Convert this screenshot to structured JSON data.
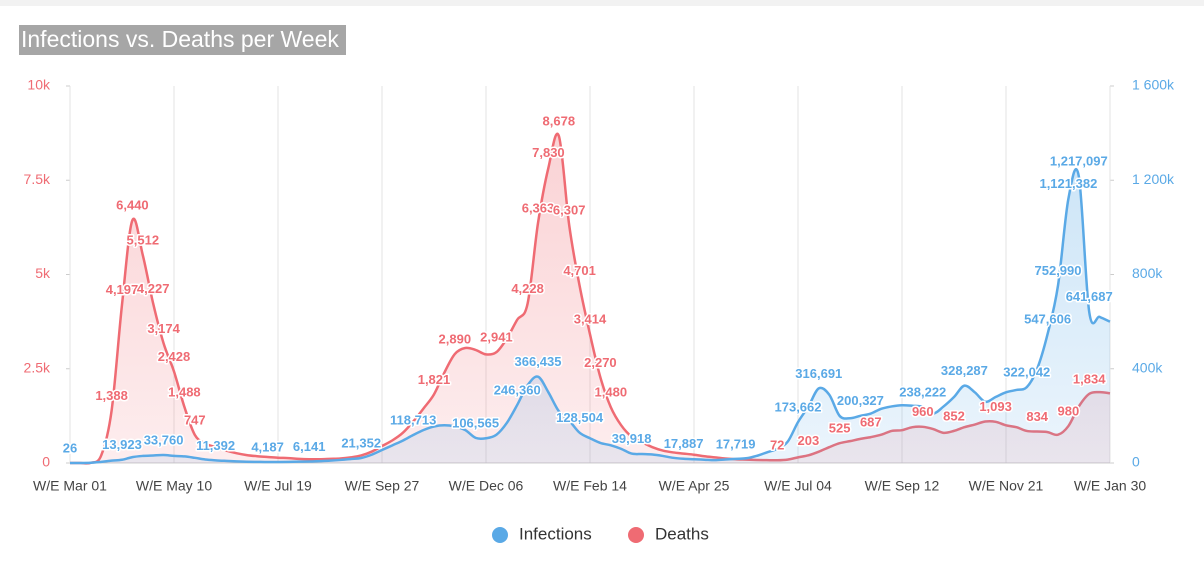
{
  "chart_data": {
    "type": "line",
    "title": "Infections vs. Deaths per Week",
    "categories": [
      "W/E Mar 01",
      null,
      null,
      null,
      null,
      null,
      null,
      null,
      null,
      null,
      "W/E May 10",
      null,
      null,
      null,
      null,
      null,
      null,
      null,
      null,
      null,
      "W/E Jul 19",
      null,
      null,
      null,
      null,
      null,
      null,
      null,
      null,
      null,
      "W/E Sep 27",
      null,
      null,
      null,
      null,
      null,
      null,
      null,
      null,
      null,
      "W/E Dec 06",
      null,
      null,
      null,
      null,
      null,
      null,
      null,
      null,
      null,
      "W/E Feb 14",
      null,
      null,
      null,
      null,
      null,
      null,
      null,
      null,
      null,
      "W/E Apr 25",
      null,
      null,
      null,
      null,
      null,
      null,
      null,
      null,
      null,
      "W/E Jul 04",
      null,
      null,
      null,
      null,
      null,
      null,
      null,
      null,
      null,
      "W/E Sep 12",
      null,
      null,
      null,
      null,
      null,
      null,
      null,
      null,
      null,
      "W/E Nov 21",
      null,
      null,
      null,
      null,
      null,
      null,
      null,
      null,
      null,
      "W/E Jan 30"
    ],
    "series": [
      {
        "name": "Infections",
        "color": "#5aa9e6",
        "axis": "y2",
        "values": [
          26,
          100,
          1000,
          5000,
          10000,
          13923,
          25000,
          30000,
          32000,
          33760,
          30000,
          28000,
          22000,
          15000,
          11392,
          9000,
          7000,
          5500,
          4800,
          4187,
          4500,
          5000,
          5800,
          6141,
          8000,
          10000,
          13000,
          17000,
          21352,
          35000,
          55000,
          75000,
          95000,
          118713,
          140000,
          155000,
          160000,
          155000,
          140000,
          106565,
          105000,
          120000,
          170000,
          246360,
          330000,
          366435,
          300000,
          220000,
          180000,
          128504,
          105000,
          85000,
          75000,
          60000,
          39918,
          38000,
          36000,
          30000,
          22000,
          17887,
          16000,
          14000,
          12000,
          15000,
          17719,
          20000,
          30000,
          45000,
          60000,
          90000,
          173662,
          240000,
          316691,
          290000,
          200000,
          190000,
          200327,
          210000,
          230000,
          240000,
          245000,
          243000,
          238222,
          210000,
          240000,
          280000,
          328287,
          300000,
          260000,
          280000,
          300000,
          310000,
          322042,
          400000,
          547606,
          752990,
          1121382,
          1217097,
          641687,
          620000,
          600000
        ],
        "value_labels": [
          "26",
          null,
          null,
          null,
          null,
          "13,923",
          null,
          null,
          null,
          "33,760",
          null,
          null,
          null,
          null,
          "11,392",
          null,
          null,
          null,
          null,
          "4,187",
          null,
          null,
          null,
          "6,141",
          null,
          null,
          null,
          null,
          "21,352",
          null,
          null,
          null,
          null,
          "118,713",
          null,
          null,
          null,
          null,
          null,
          "106,565",
          null,
          null,
          null,
          "246,360",
          null,
          "366,435",
          null,
          null,
          null,
          "128,504",
          null,
          null,
          null,
          null,
          "39,918",
          null,
          null,
          null,
          null,
          "17,887",
          null,
          null,
          null,
          null,
          "17,719",
          null,
          null,
          null,
          null,
          null,
          "173,662",
          null,
          "316,691",
          null,
          null,
          null,
          "200,327",
          null,
          null,
          null,
          null,
          null,
          "238,222",
          null,
          null,
          null,
          "328,287",
          null,
          null,
          null,
          null,
          null,
          "322,042",
          null,
          "547,606",
          "752,990",
          "1,121,382",
          "1,217,097",
          "641,687",
          null,
          null
        ]
      },
      {
        "name": "Deaths",
        "color": "#ef6b73",
        "values": [
          0,
          0,
          5,
          200,
          1388,
          4197,
          6440,
          5512,
          4227,
          3174,
          2428,
          1488,
          747,
          520,
          420,
          330,
          260,
          210,
          180,
          160,
          140,
          130,
          110,
          100,
          100,
          110,
          120,
          150,
          200,
          300,
          450,
          600,
          800,
          1100,
          1450,
          1821,
          2400,
          2890,
          3050,
          3000,
          2880,
          2941,
          3300,
          3800,
          4228,
          6363,
          7830,
          8678,
          6307,
          4701,
          3414,
          2270,
          1480,
          1000,
          700,
          550,
          420,
          330,
          280,
          250,
          220,
          180,
          150,
          120,
          100,
          90,
          80,
          75,
          72,
          90,
          150,
          203,
          300,
          420,
          525,
          580,
          640,
          687,
          750,
          850,
          870,
          950,
          960,
          900,
          800,
          852,
          950,
          1020,
          1100,
          1093,
          1000,
          950,
          850,
          834,
          820,
          750,
          980,
          1500,
          1834,
          1880,
          1850
        ],
        "value_labels": [
          null,
          null,
          null,
          null,
          "1,388",
          "4,197",
          "6,440",
          "5,512",
          "4,227",
          "3,174",
          "2,428",
          "1,488",
          "747",
          null,
          null,
          null,
          null,
          null,
          null,
          null,
          null,
          null,
          null,
          null,
          null,
          null,
          null,
          null,
          null,
          null,
          null,
          null,
          null,
          null,
          null,
          "1,821",
          null,
          "2,890",
          null,
          null,
          null,
          "2,941",
          null,
          null,
          "4,228",
          "6,363",
          "7,830",
          "8,678",
          "6,307",
          "4,701",
          "3,414",
          "2,270",
          "1,480",
          null,
          null,
          null,
          null,
          null,
          null,
          null,
          null,
          null,
          null,
          null,
          null,
          null,
          null,
          null,
          "72",
          null,
          null,
          "203",
          null,
          null,
          "525",
          null,
          null,
          "687",
          null,
          null,
          null,
          null,
          "960",
          null,
          null,
          "852",
          null,
          null,
          null,
          "1,093",
          null,
          null,
          null,
          "834",
          null,
          null,
          "980",
          null,
          "1,834",
          null,
          null
        ]
      }
    ],
    "ylim": [
      0,
      10000
    ],
    "yticks": [
      0,
      {
        "value": 2500,
        "label": "2.5k"
      },
      {
        "value": 5000,
        "label": "5k"
      },
      {
        "value": 7500,
        "label": "7.5k"
      },
      {
        "value": 10000,
        "label": "10k"
      }
    ],
    "y2lim": [
      0,
      1600000
    ],
    "y2ticks": [
      0,
      {
        "value": 400000,
        "label": "400k"
      },
      {
        "value": 800000,
        "label": "800k"
      },
      {
        "value": 1200000,
        "label": "1 200k"
      },
      {
        "value": 1600000,
        "label": "1 600k"
      }
    ],
    "grid": true
  }
}
